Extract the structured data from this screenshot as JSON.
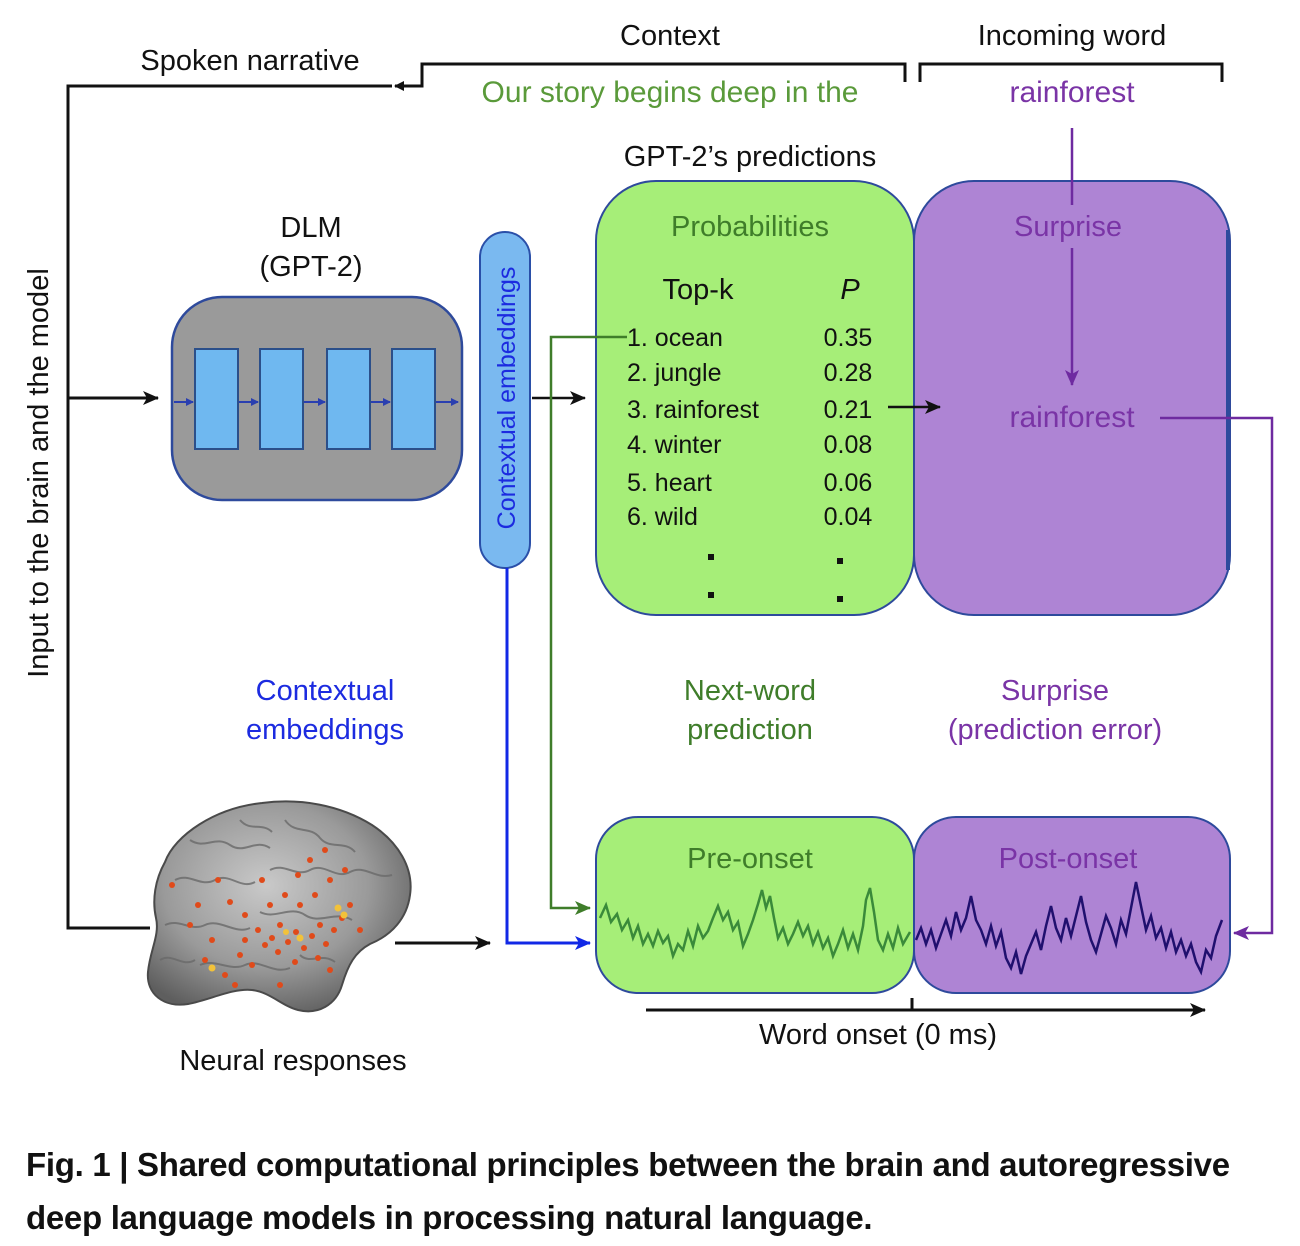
{
  "labels": {
    "spoken_narrative": "Spoken narrative",
    "context": "Context",
    "incoming_word": "Incoming word",
    "context_sentence": "Our story begins deep in the",
    "incoming_word_value": "rainforest",
    "input_axis": "Input to the brain and the model",
    "dlm_line1": "DLM",
    "dlm_line2": "(GPT-2)",
    "contextual_embeddings_vertical": "Contextual embeddings",
    "gpt2_predictions": "GPT-2’s predictions",
    "probabilities_title": "Probabilities",
    "topk_header": "Top-k",
    "p_header": "P",
    "surprise_title": "Surprise",
    "surprise_word": "rainforest",
    "contextual_embeddings_line1": "Contextual",
    "contextual_embeddings_line2": "embeddings",
    "next_word_line1": "Next-word",
    "next_word_line2": "prediction",
    "surprise_line1": "Surprise",
    "surprise_line2": "(prediction error)",
    "pre_onset": "Pre-onset",
    "post_onset": "Post-onset",
    "word_onset": "Word onset (0 ms)",
    "neural_responses": "Neural responses"
  },
  "predictions": [
    {
      "rank": "1. ocean",
      "p": "0.35"
    },
    {
      "rank": "2. jungle",
      "p": "0.28"
    },
    {
      "rank": "3. rainforest",
      "p": "0.21"
    },
    {
      "rank": "4. winter",
      "p": "0.08"
    },
    {
      "rank": "5. heart",
      "p": "0.06"
    },
    {
      "rank": "6. wild",
      "p": "0.04"
    }
  ],
  "caption": {
    "fig_label": "Fig. 1 | ",
    "text": "Shared computational principles between the brain and autoregressive deep language models in processing natural language."
  },
  "colors": {
    "green_fill": "#a6ee78",
    "green_text": "#3f7d2a",
    "purple_fill": "#ae84d4",
    "purple_text": "#7a34a6",
    "purple_line": "#6e2aa0",
    "blue_text": "#1c2be0",
    "blue_line": "#1128e6",
    "dlm_gray": "#9a9a9a",
    "layer_blue": "#6fb8f0",
    "embed_blue": "#7ab9f0"
  }
}
